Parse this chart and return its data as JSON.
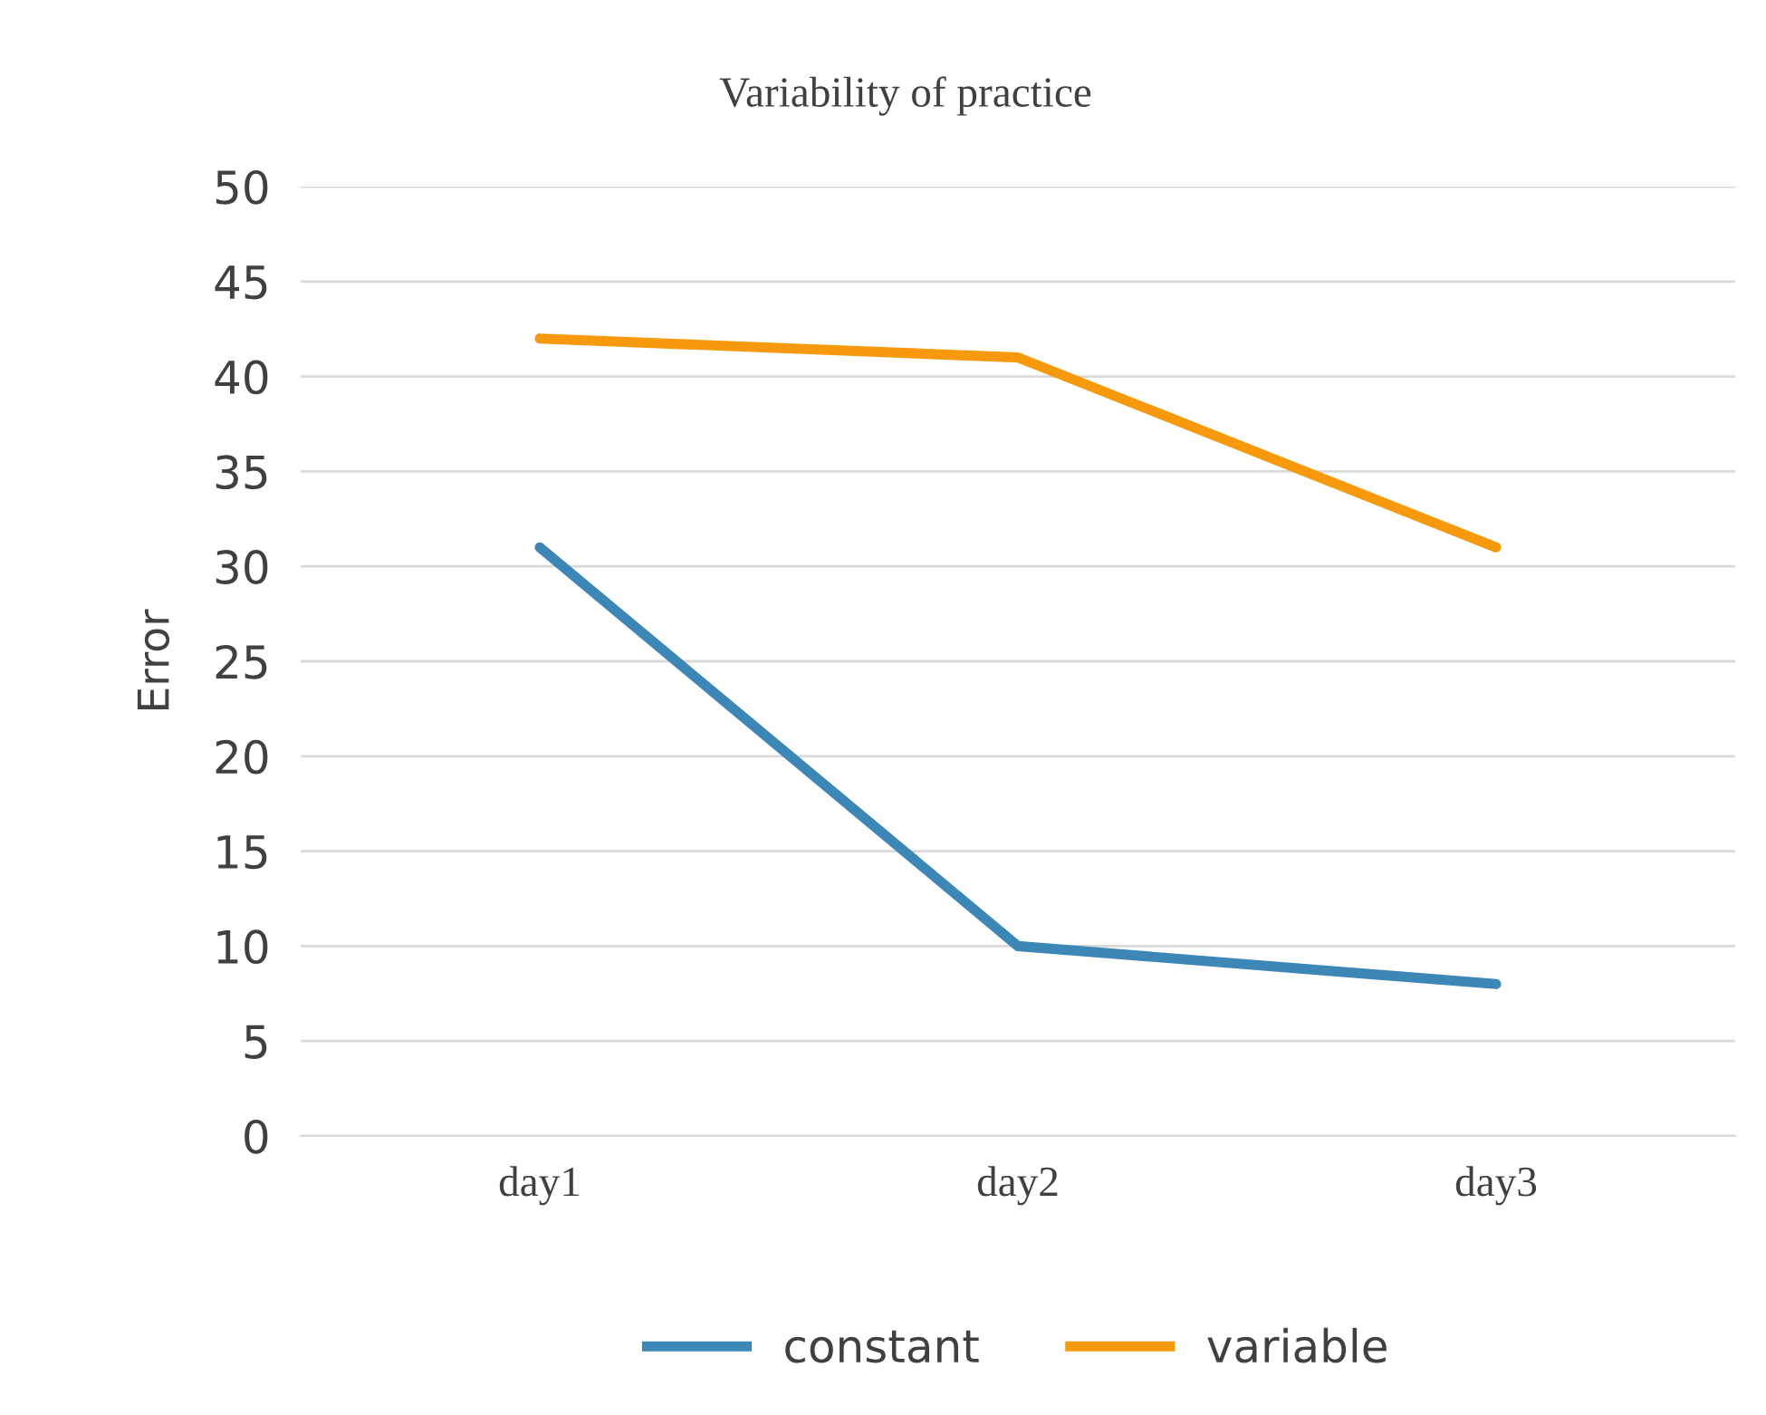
{
  "chart_data": {
    "type": "line",
    "title": "Variability of practice",
    "ylabel": "Error",
    "categories": [
      "day1",
      "day2",
      "day3"
    ],
    "series": [
      {
        "name": "constant",
        "color": "#3c87b6",
        "values": [
          31,
          10,
          8
        ]
      },
      {
        "name": "variable",
        "color": "#f7990c",
        "values": [
          42,
          41,
          31
        ]
      }
    ],
    "ylim": [
      0,
      50
    ],
    "yticks": [
      0,
      5,
      10,
      15,
      20,
      25,
      30,
      35,
      40,
      45,
      50
    ],
    "grid": "y",
    "legend": "bottom",
    "marker": "none",
    "line_style": "solid"
  }
}
